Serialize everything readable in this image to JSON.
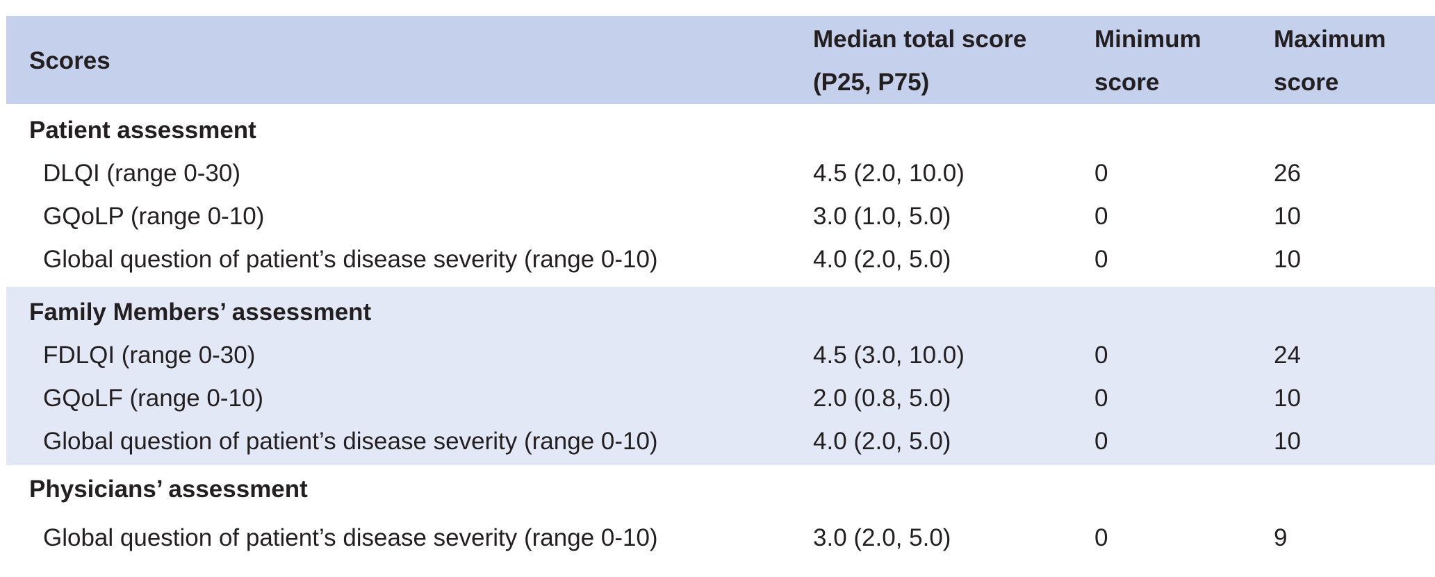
{
  "table": {
    "headers": {
      "scores": "Scores",
      "median_line1": "Median total score",
      "median_line2": "(P25, P75)",
      "min_line1": "Minimum",
      "min_line2": "score",
      "max_line1": "Maximum",
      "max_line2": "score"
    },
    "sections": [
      {
        "title": "Patient assessment",
        "rows": [
          {
            "label": "DLQI (range 0-30)",
            "median": "4.5 (2.0, 10.0)",
            "min": "0",
            "max": "26"
          },
          {
            "label": "GQoLP (range 0-10)",
            "median": "3.0 (1.0, 5.0)",
            "min": "0",
            "max": "10"
          },
          {
            "label": "Global question of patient’s disease severity (range 0-10)",
            "median": "4.0 (2.0, 5.0)",
            "min": "0",
            "max": "10"
          }
        ]
      },
      {
        "title": "Family Members’ assessment",
        "rows": [
          {
            "label": "FDLQI (range 0-30)",
            "median": "4.5 (3.0, 10.0)",
            "min": "0",
            "max": "24"
          },
          {
            "label": "GQoLF (range 0-10)",
            "median": "2.0 (0.8, 5.0)",
            "min": "0",
            "max": "10"
          },
          {
            "label": "Global question of patient’s disease severity (range 0-10)",
            "median": "4.0 (2.0, 5.0)",
            "min": "0",
            "max": "10"
          }
        ]
      },
      {
        "title": "Physicians’ assessment",
        "rows": [
          {
            "label": "Global question of patient’s disease severity (range 0-10)",
            "median": "3.0 (2.0, 5.0)",
            "min": "0",
            "max": "9"
          }
        ]
      }
    ],
    "colors": {
      "header_bg": "#c5d0ec",
      "band_bg": "#e3e8f6",
      "text": "#231f20"
    }
  }
}
